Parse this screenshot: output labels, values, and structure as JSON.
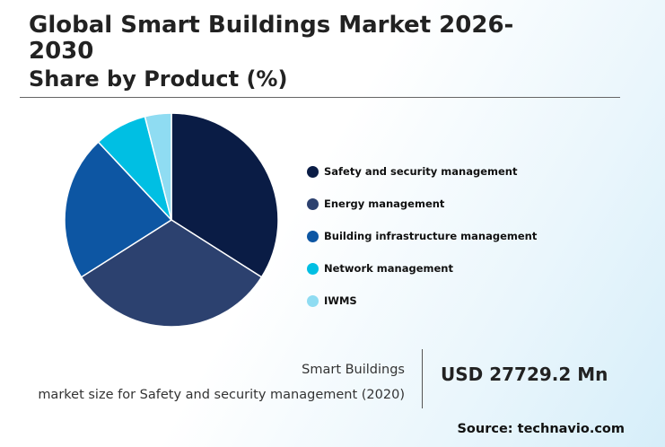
{
  "header": {
    "title": "Global Smart Buildings Market 2026-2030",
    "subtitle": "Share by Product (%)"
  },
  "chart_data": {
    "type": "pie",
    "categories": [
      "Safety and security management",
      "Energy management",
      "Building infrastructure management",
      "Network management",
      "IWMS"
    ],
    "values": [
      34,
      32,
      22,
      8,
      4
    ],
    "colors": [
      "#0a1c45",
      "#2c416f",
      "#0d56a3",
      "#00bfe3",
      "#8fdcf2"
    ],
    "legend_position": "right"
  },
  "stat": {
    "label_line1": "Smart Buildings",
    "label_line2": "market size for Safety and security management (2020)",
    "value": "USD 27729.2 Mn"
  },
  "footer": {
    "source": "Source: technavio.com"
  }
}
